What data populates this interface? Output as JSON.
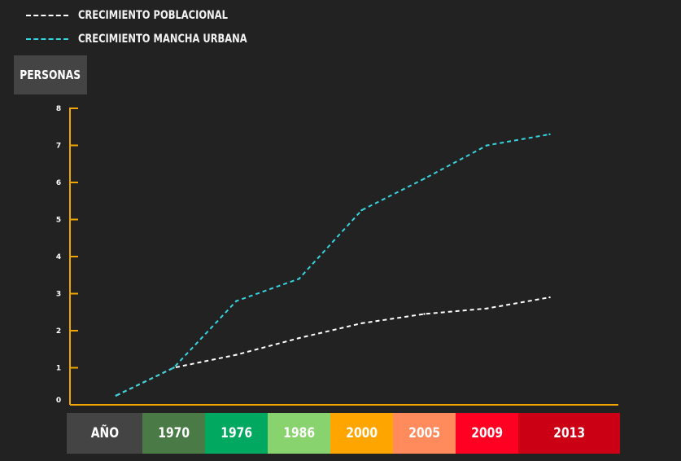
{
  "chart_data": {
    "type": "line",
    "ylabel": "PERSONAS",
    "xlabel": "AÑO",
    "x": [
      "1970",
      "1976",
      "1986",
      "2000",
      "2005",
      "2009",
      "2013"
    ],
    "ylim": [
      0,
      8
    ],
    "yticks": [
      "0",
      "1",
      "2",
      "3",
      "4",
      "5",
      "6",
      "7",
      "8"
    ],
    "series": [
      {
        "name": "CRECIMIENTO POBLACIONAL",
        "color": "#ffffff",
        "style": "dashed",
        "points": [
          {
            "x": 1964.5,
            "y": 0.25
          },
          {
            "x": 1970,
            "y": 1.0
          },
          {
            "x": 1976,
            "y": 1.35
          },
          {
            "x": 1986,
            "y": 1.8
          },
          {
            "x": 2000,
            "y": 2.2
          },
          {
            "x": 2005,
            "y": 2.45
          },
          {
            "x": 2009,
            "y": 2.6
          },
          {
            "x": 2013,
            "y": 2.9
          }
        ]
      },
      {
        "name": "CRECIMIENTO MANCHA URBANA",
        "color": "#37d3df",
        "style": "dashed",
        "points": [
          {
            "x": 1964.5,
            "y": 0.25
          },
          {
            "x": 1970,
            "y": 1.0
          },
          {
            "x": 1976,
            "y": 2.8
          },
          {
            "x": 1986,
            "y": 3.4
          },
          {
            "x": 2000,
            "y": 5.25
          },
          {
            "x": 2005,
            "y": 6.1
          },
          {
            "x": 2009,
            "y": 7.0
          },
          {
            "x": 2013,
            "y": 7.3
          }
        ]
      }
    ],
    "axis_color": "#f0a500",
    "category_colors": [
      "#444444",
      "#4a7a45",
      "#00a860",
      "#88d36e",
      "#ffa500",
      "#ff8a5c",
      "#ff0022",
      "#cc0014"
    ]
  }
}
